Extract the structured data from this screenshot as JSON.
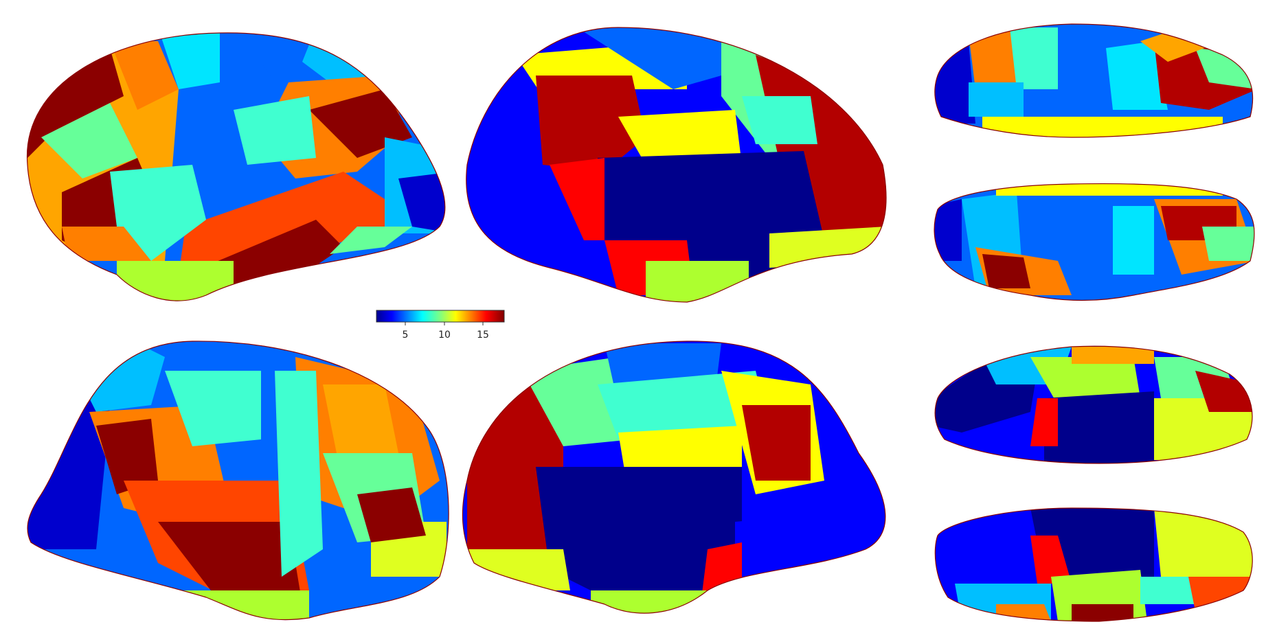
{
  "figure": {
    "views": [
      {
        "name": "left-hemisphere-lateral"
      },
      {
        "name": "left-hemisphere-medial"
      },
      {
        "name": "right-hemisphere-lateral"
      },
      {
        "name": "right-hemisphere-medial"
      },
      {
        "name": "dorsal-view"
      },
      {
        "name": "dorsal-view-2"
      },
      {
        "name": "ventral-view"
      },
      {
        "name": "ventral-view-2"
      }
    ],
    "colorbar": {
      "colormap": "jet",
      "ticks": [
        "5",
        "10",
        "15"
      ],
      "tick_values": [
        5,
        10,
        15
      ],
      "range": [
        1,
        17
      ],
      "colors": [
        "#00008f",
        "#0000ff",
        "#0080ff",
        "#00ffff",
        "#80ff80",
        "#ffff00",
        "#ff8000",
        "#ff0000",
        "#800000"
      ]
    },
    "boundary_color": "#8b0000"
  }
}
